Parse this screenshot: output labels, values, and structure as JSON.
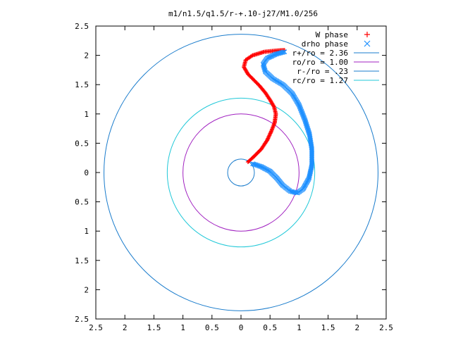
{
  "chart_data": {
    "type": "scatter",
    "title": "m1/n1.5/q1.5/r-+.10-j27/M1.0/256",
    "xlabel": "",
    "ylabel": "",
    "xlim": [
      -2.5,
      2.5
    ],
    "ylim": [
      -2.5,
      2.5
    ],
    "x_ticks": [
      -2.5,
      -2,
      -1.5,
      -1,
      -0.5,
      0,
      0.5,
      1,
      1.5,
      2,
      2.5
    ],
    "x_tick_labels": [
      "2.5",
      "2",
      "1.5",
      "1",
      "0.5",
      "0",
      "0.5",
      "1",
      "1.5",
      "2",
      "2.5"
    ],
    "y_ticks": [
      2.5,
      2,
      1.5,
      1,
      0.5,
      0,
      -0.5,
      -1,
      -1.5,
      -2,
      -2.5
    ],
    "y_tick_labels": [
      "2.5",
      "2",
      "1.5",
      "1",
      "0.5",
      "0",
      "0.5",
      "1",
      "1.5",
      "2",
      "2.5"
    ],
    "grid": false,
    "legend_position": "top-right",
    "legend": [
      {
        "label": "W phase",
        "kind": "marker",
        "marker": "plus",
        "color": "#ff0000"
      },
      {
        "label": "drho phase",
        "kind": "marker",
        "marker": "cross",
        "color": "#1e90ff"
      },
      {
        "label": "r+/ro = 2.36",
        "kind": "line",
        "color": "#1a7ccc"
      },
      {
        "label": "ro/ro = 1.00",
        "kind": "line",
        "color": "#a020c0"
      },
      {
        "label": "r-/ro = .23",
        "kind": "line",
        "color": "#1a7ccc"
      },
      {
        "label": "rc/ro = 1.27",
        "kind": "line",
        "color": "#20c8d8"
      }
    ],
    "circles": [
      {
        "name": "r+/ro = 2.36",
        "radius": 2.36,
        "color": "#1a7ccc"
      },
      {
        "name": "ro/ro = 1.00",
        "radius": 1.0,
        "color": "#a020c0"
      },
      {
        "name": "r-/ro = .23",
        "radius": 0.23,
        "color": "#1a7ccc"
      },
      {
        "name": "rc/ro = 1.27",
        "radius": 1.27,
        "color": "#20c8d8"
      }
    ],
    "series": [
      {
        "name": "W phase",
        "marker": "plus",
        "color": "#ff0000",
        "points": [
          [
            0.12,
            0.18
          ],
          [
            0.22,
            0.27
          ],
          [
            0.35,
            0.4
          ],
          [
            0.45,
            0.55
          ],
          [
            0.52,
            0.7
          ],
          [
            0.58,
            0.85
          ],
          [
            0.6,
            1.0
          ],
          [
            0.57,
            1.12
          ],
          [
            0.5,
            1.24
          ],
          [
            0.42,
            1.36
          ],
          [
            0.32,
            1.48
          ],
          [
            0.22,
            1.58
          ],
          [
            0.12,
            1.68
          ],
          [
            0.05,
            1.8
          ],
          [
            0.08,
            1.92
          ],
          [
            0.2,
            2.0
          ],
          [
            0.4,
            2.06
          ],
          [
            0.6,
            2.08
          ],
          [
            0.75,
            2.09
          ]
        ]
      },
      {
        "name": "drho phase",
        "marker": "cross",
        "color": "#1e90ff",
        "points": [
          [
            0.2,
            0.15
          ],
          [
            0.35,
            0.1
          ],
          [
            0.5,
            0.02
          ],
          [
            0.62,
            -0.1
          ],
          [
            0.72,
            -0.22
          ],
          [
            0.85,
            -0.32
          ],
          [
            0.97,
            -0.35
          ],
          [
            1.07,
            -0.28
          ],
          [
            1.17,
            -0.1
          ],
          [
            1.22,
            0.12
          ],
          [
            1.22,
            0.4
          ],
          [
            1.18,
            0.65
          ],
          [
            1.1,
            0.9
          ],
          [
            1.0,
            1.15
          ],
          [
            0.88,
            1.35
          ],
          [
            0.72,
            1.5
          ],
          [
            0.55,
            1.6
          ],
          [
            0.42,
            1.72
          ],
          [
            0.38,
            1.85
          ],
          [
            0.45,
            1.95
          ],
          [
            0.6,
            2.02
          ],
          [
            0.75,
            2.06
          ]
        ]
      }
    ]
  }
}
